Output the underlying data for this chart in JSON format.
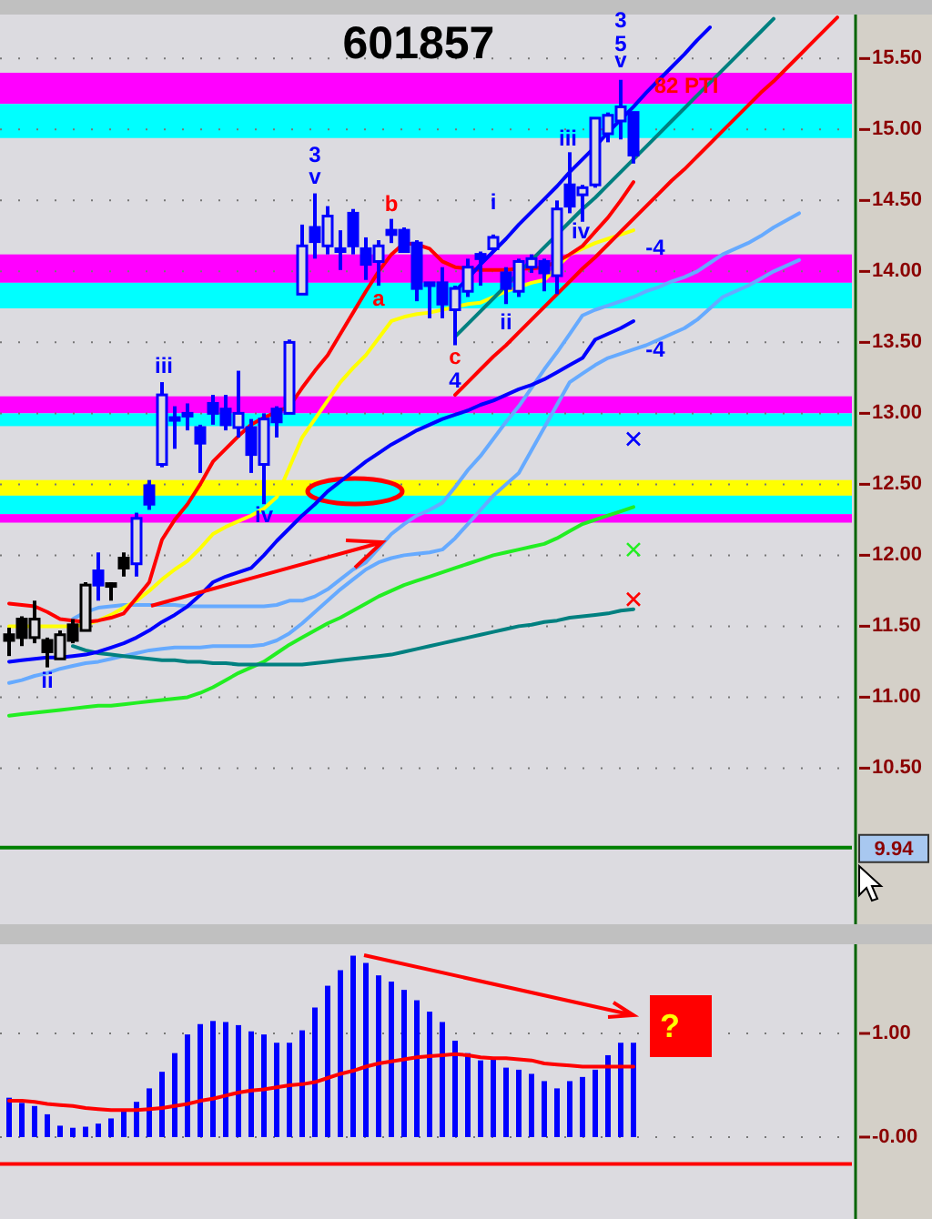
{
  "chart_data": [
    {
      "type": "candlestick",
      "title": "601857",
      "categories": [
        null,
        null,
        null,
        null,
        null,
        null,
        null,
        null,
        null,
        null,
        null,
        null,
        null,
        null,
        null,
        null,
        null,
        null,
        null,
        null,
        null,
        null,
        null,
        null,
        null,
        null,
        null,
        null,
        null,
        null,
        null,
        null,
        null,
        null,
        null,
        null,
        null,
        null,
        null,
        null,
        null,
        null,
        null,
        null,
        null,
        null,
        null,
        null,
        null,
        null,
        null,
        null,
        null,
        null,
        null,
        null,
        null,
        null,
        null,
        null,
        null,
        null,
        null,
        null,
        null,
        null,
        null
      ],
      "ohlc": [
        [
          11.44,
          11.49,
          11.29,
          11.4
        ],
        [
          11.55,
          11.57,
          11.36,
          11.42
        ],
        [
          11.42,
          11.68,
          11.38,
          11.55
        ],
        [
          11.4,
          11.42,
          11.21,
          11.32
        ],
        [
          11.27,
          11.47,
          11.27,
          11.44
        ],
        [
          11.51,
          11.55,
          11.38,
          11.4
        ],
        [
          11.47,
          11.81,
          11.47,
          11.79
        ],
        [
          11.89,
          12.02,
          11.68,
          11.79
        ],
        [
          11.8,
          11.81,
          11.68,
          11.79
        ],
        [
          11.98,
          12.02,
          11.85,
          11.91
        ],
        [
          11.94,
          12.3,
          11.85,
          12.26
        ],
        [
          12.49,
          12.53,
          12.32,
          12.36
        ],
        [
          12.64,
          13.22,
          12.62,
          13.13
        ],
        [
          12.97,
          13.05,
          12.75,
          12.96
        ],
        [
          13.0,
          13.07,
          12.88,
          12.99
        ],
        [
          12.9,
          12.92,
          12.58,
          12.79
        ],
        [
          13.07,
          13.13,
          12.92,
          13.0
        ],
        [
          13.03,
          13.13,
          12.88,
          12.92
        ],
        [
          12.9,
          13.3,
          12.83,
          13.0
        ],
        [
          12.9,
          12.96,
          12.58,
          12.71
        ],
        [
          12.64,
          13.0,
          12.36,
          12.96
        ],
        [
          13.03,
          13.05,
          12.83,
          12.94
        ],
        [
          13.0,
          13.52,
          13.0,
          13.5
        ],
        [
          13.84,
          14.33,
          13.84,
          14.18
        ],
        [
          14.31,
          14.55,
          14.09,
          14.21
        ],
        [
          14.18,
          14.46,
          14.12,
          14.39
        ],
        [
          14.16,
          14.29,
          14.01,
          14.14
        ],
        [
          14.41,
          14.44,
          14.12,
          14.18
        ],
        [
          14.16,
          14.24,
          13.94,
          14.05
        ],
        [
          14.07,
          14.22,
          13.9,
          14.18
        ],
        [
          14.29,
          14.37,
          14.2,
          14.26
        ],
        [
          14.29,
          14.31,
          14.14,
          14.14
        ],
        [
          14.2,
          14.22,
          13.79,
          13.88
        ],
        [
          13.92,
          13.92,
          13.67,
          13.9
        ],
        [
          13.92,
          14.03,
          13.67,
          13.77
        ],
        [
          13.73,
          13.9,
          13.48,
          13.88
        ],
        [
          13.86,
          14.09,
          13.82,
          14.03
        ],
        [
          14.12,
          14.14,
          13.9,
          14.09
        ],
        [
          14.16,
          14.26,
          14.14,
          14.24
        ],
        [
          13.99,
          14.03,
          13.77,
          13.88
        ],
        [
          13.86,
          14.09,
          13.82,
          14.07
        ],
        [
          14.03,
          14.12,
          13.99,
          14.09
        ],
        [
          14.07,
          14.09,
          13.86,
          13.99
        ],
        [
          13.97,
          14.5,
          13.84,
          14.44
        ],
        [
          14.61,
          14.84,
          14.41,
          14.46
        ],
        [
          14.54,
          14.61,
          14.35,
          14.59
        ],
        [
          14.61,
          15.08,
          14.59,
          15.08
        ],
        [
          14.97,
          15.12,
          14.91,
          15.1
        ],
        [
          15.06,
          15.35,
          14.93,
          15.16
        ],
        [
          15.12,
          15.12,
          14.76,
          14.82
        ],
        null,
        null,
        null,
        null,
        null,
        null,
        null,
        null,
        null,
        null,
        null,
        null,
        null,
        null,
        null,
        null,
        null
      ],
      "colors": [
        "#000000",
        "#000000",
        "#000000",
        "#000000",
        "#000000",
        "#000000",
        "#000000",
        "#0000ff",
        "#000000",
        "#000000",
        "#0000ff",
        "#0000ff",
        "#0000ff",
        "#0000ff",
        "#0000ff",
        "#0000ff",
        "#0000ff",
        "#0000ff",
        "#0000ff",
        "#0000ff",
        "#0000ff",
        "#0000ff",
        "#0000ff",
        "#0000ff",
        "#0000ff",
        "#0000ff",
        "#0000ff",
        "#0000ff",
        "#0000ff",
        "#0000ff",
        "#0000ff",
        "#0000ff",
        "#0000ff",
        "#0000ff",
        "#0000ff",
        "#0000ff",
        "#0000ff",
        "#0000ff",
        "#0000ff",
        "#0000ff",
        "#0000ff",
        "#0000ff",
        "#0000ff",
        "#0000ff",
        "#0000ff",
        "#0000ff",
        "#0000ff",
        "#0000ff",
        "#0000ff",
        "#0000ff",
        null,
        null,
        null,
        null,
        null,
        null,
        null,
        null,
        null,
        null,
        null,
        null,
        null,
        null,
        null,
        null,
        null
      ],
      "series": [
        {
          "type": "line",
          "color": "#66aaff",
          "values": [
            null,
            null,
            null,
            null,
            null,
            11.55,
            11.6,
            11.63,
            11.64,
            11.65,
            11.65,
            11.65,
            11.65,
            11.65,
            11.64,
            11.64,
            11.64,
            11.64,
            11.64,
            11.64,
            11.64,
            11.65,
            11.68,
            11.68,
            11.71,
            11.76,
            11.83,
            11.9,
            11.95,
            12.05,
            12.15,
            12.22,
            12.28,
            12.32,
            12.37,
            12.48,
            12.6,
            12.7,
            12.82,
            12.94,
            13.05,
            13.18,
            13.31,
            13.43,
            13.56,
            13.69,
            13.73,
            13.76,
            13.79,
            13.82,
            13.86,
            13.89,
            13.93,
            13.96,
            14.0,
            14.06,
            14.12,
            14.16,
            14.2,
            14.25,
            14.31,
            14.36,
            14.41,
            null,
            null,
            null,
            null
          ]
        },
        {
          "type": "line",
          "color": "#66aaff",
          "values": [
            11.1,
            11.12,
            11.15,
            11.17,
            11.2,
            11.22,
            11.24,
            11.25,
            11.27,
            11.29,
            11.31,
            11.33,
            11.34,
            11.35,
            11.35,
            11.35,
            11.36,
            11.36,
            11.36,
            11.36,
            11.37,
            11.4,
            11.45,
            11.52,
            11.6,
            11.68,
            11.76,
            11.83,
            11.9,
            11.95,
            11.98,
            12.0,
            12.01,
            12.02,
            12.04,
            12.12,
            12.22,
            12.32,
            12.42,
            12.5,
            12.58,
            12.74,
            12.9,
            13.06,
            13.22,
            13.28,
            13.34,
            13.39,
            13.42,
            13.45,
            13.48,
            13.52,
            13.56,
            13.6,
            13.66,
            13.74,
            13.82,
            13.86,
            13.9,
            13.95,
            14.0,
            14.04,
            14.08,
            null,
            null,
            null,
            null
          ]
        },
        {
          "type": "line",
          "color": "#22ee22",
          "values": [
            10.87,
            10.88,
            10.89,
            10.9,
            10.91,
            10.92,
            10.93,
            10.94,
            10.94,
            10.95,
            10.96,
            10.97,
            10.98,
            10.99,
            11.0,
            11.03,
            11.07,
            11.12,
            11.17,
            11.21,
            11.25,
            11.31,
            11.37,
            11.42,
            11.47,
            11.52,
            11.56,
            11.61,
            11.66,
            11.71,
            11.75,
            11.79,
            11.82,
            11.85,
            11.88,
            11.91,
            11.94,
            11.97,
            12.0,
            12.02,
            12.04,
            12.06,
            12.08,
            12.12,
            12.17,
            12.22,
            12.25,
            12.28,
            12.31,
            12.34,
            null,
            null,
            null,
            null,
            null,
            null,
            null,
            null,
            null,
            null,
            null,
            null,
            null,
            null,
            null,
            null,
            null
          ]
        },
        {
          "type": "line",
          "color": "#008080",
          "values": [
            null,
            null,
            null,
            null,
            null,
            11.36,
            11.33,
            11.31,
            11.3,
            11.29,
            11.28,
            11.27,
            11.26,
            11.26,
            11.25,
            11.25,
            11.24,
            11.24,
            11.23,
            11.23,
            11.23,
            11.23,
            11.23,
            11.23,
            11.24,
            11.25,
            11.26,
            11.27,
            11.28,
            11.29,
            11.3,
            11.32,
            11.34,
            11.36,
            11.38,
            11.4,
            11.42,
            11.44,
            11.46,
            11.48,
            11.5,
            11.51,
            11.53,
            11.54,
            11.56,
            11.57,
            11.58,
            11.59,
            11.61,
            11.62,
            null,
            null,
            null,
            null,
            null,
            null,
            null,
            null,
            null,
            null,
            null,
            null,
            null,
            null,
            null,
            null,
            null
          ]
        },
        {
          "type": "line",
          "color": "#ffff00",
          "values": [
            11.5,
            11.5,
            11.5,
            11.5,
            11.5,
            11.5,
            11.51,
            11.54,
            11.58,
            11.63,
            11.68,
            11.75,
            11.83,
            11.9,
            11.96,
            12.05,
            12.15,
            12.2,
            12.24,
            12.28,
            12.33,
            12.41,
            12.62,
            12.83,
            12.96,
            13.09,
            13.22,
            13.32,
            13.41,
            13.53,
            13.65,
            13.68,
            13.7,
            13.71,
            13.73,
            13.75,
            13.77,
            13.78,
            13.82,
            13.86,
            13.89,
            13.92,
            13.94,
            14.03,
            14.12,
            14.16,
            14.2,
            14.23,
            14.26,
            14.29,
            null,
            null,
            null,
            null,
            null,
            null,
            null,
            null,
            null,
            null,
            null,
            null,
            null,
            null,
            null,
            null,
            null
          ]
        },
        {
          "type": "line",
          "color": "#0000ff",
          "values": [
            11.25,
            11.26,
            11.27,
            11.28,
            11.28,
            11.29,
            11.3,
            11.32,
            11.35,
            11.38,
            11.42,
            11.47,
            11.53,
            11.58,
            11.64,
            11.72,
            11.81,
            11.85,
            11.88,
            11.91,
            12.0,
            12.1,
            12.19,
            12.28,
            12.36,
            12.45,
            12.52,
            12.59,
            12.66,
            12.72,
            12.78,
            12.83,
            12.88,
            12.92,
            12.96,
            12.99,
            13.02,
            13.06,
            13.09,
            13.13,
            13.17,
            13.2,
            13.24,
            13.29,
            13.34,
            13.39,
            13.52,
            13.56,
            13.6,
            13.65,
            null,
            null,
            null,
            null,
            null,
            null,
            null,
            null,
            null,
            null,
            null,
            null,
            null,
            null,
            null,
            null,
            null
          ]
        },
        {
          "type": "line",
          "color": "#ff0000",
          "values": [
            11.66,
            11.65,
            11.64,
            11.6,
            11.55,
            11.54,
            11.53,
            11.54,
            11.56,
            11.59,
            11.7,
            11.81,
            12.11,
            12.25,
            12.36,
            12.5,
            12.66,
            12.75,
            12.84,
            12.92,
            12.97,
            13.01,
            13.05,
            13.18,
            13.3,
            13.41,
            13.56,
            13.71,
            13.86,
            14.0,
            14.12,
            14.2,
            14.19,
            14.16,
            14.07,
            14.03,
            14.02,
            14.01,
            14.01,
            14.01,
            14.02,
            14.02,
            14.03,
            14.07,
            14.12,
            14.18,
            14.28,
            14.38,
            14.5,
            14.63,
            null,
            null,
            null,
            null,
            null,
            null,
            null,
            null,
            null,
            null,
            null,
            null,
            null,
            null,
            null,
            null,
            null
          ]
        },
        {
          "type": "line",
          "color": "#0000ff",
          "values": [
            null,
            null,
            null,
            null,
            null,
            null,
            null,
            null,
            null,
            null,
            null,
            null,
            null,
            null,
            null,
            null,
            null,
            null,
            null,
            null,
            null,
            null,
            null,
            null,
            null,
            null,
            null,
            null,
            null,
            null,
            null,
            null,
            null,
            null,
            null,
            13.86,
            13.95,
            14.05,
            14.14,
            14.23,
            14.33,
            14.42,
            14.51,
            14.6,
            14.7,
            14.79,
            14.88,
            14.98,
            15.07,
            15.16,
            15.26,
            15.35,
            15.44,
            15.53,
            15.63,
            15.72,
            null,
            null,
            null,
            null,
            null,
            null,
            null,
            null,
            null,
            null,
            null
          ]
        },
        {
          "type": "line",
          "color": "#008080",
          "values": [
            null,
            null,
            null,
            null,
            null,
            null,
            null,
            null,
            null,
            null,
            null,
            null,
            null,
            null,
            null,
            null,
            null,
            null,
            null,
            null,
            null,
            null,
            null,
            null,
            null,
            null,
            null,
            null,
            null,
            null,
            null,
            null,
            null,
            null,
            null,
            13.54,
            13.63,
            13.72,
            13.81,
            13.9,
            13.99,
            14.08,
            14.17,
            14.26,
            14.35,
            14.44,
            14.52,
            14.61,
            14.7,
            14.79,
            14.88,
            14.97,
            15.06,
            15.15,
            15.24,
            15.33,
            15.42,
            15.51,
            15.6,
            15.69,
            15.78,
            null,
            null,
            null,
            null,
            null,
            null
          ]
        },
        {
          "type": "line",
          "color": "#ff0000",
          "values": [
            null,
            null,
            null,
            null,
            null,
            null,
            null,
            null,
            null,
            null,
            null,
            null,
            null,
            null,
            null,
            null,
            null,
            null,
            null,
            null,
            null,
            null,
            null,
            null,
            null,
            null,
            null,
            null,
            null,
            null,
            null,
            null,
            null,
            null,
            null,
            13.13,
            13.22,
            13.31,
            13.4,
            13.48,
            13.57,
            13.66,
            13.75,
            13.84,
            13.93,
            14.02,
            14.1,
            14.19,
            14.28,
            14.37,
            14.46,
            14.55,
            14.64,
            14.72,
            14.81,
            14.9,
            14.99,
            15.08,
            15.17,
            15.26,
            15.34,
            15.43,
            15.52,
            15.61,
            15.7,
            15.79,
            null
          ]
        },
        {
          "type": "scatter",
          "marker": "cross",
          "color": "#0000ff",
          "values": [
            null,
            null,
            null,
            null,
            null,
            null,
            null,
            null,
            null,
            null,
            null,
            null,
            null,
            null,
            null,
            null,
            null,
            null,
            null,
            null,
            null,
            null,
            null,
            null,
            null,
            null,
            null,
            null,
            null,
            null,
            null,
            null,
            null,
            null,
            null,
            null,
            null,
            null,
            null,
            null,
            null,
            null,
            null,
            null,
            null,
            null,
            null,
            null,
            null,
            12.82,
            null,
            null,
            null,
            null,
            null,
            null,
            null,
            null,
            null,
            null,
            null,
            null,
            null,
            null,
            null,
            null,
            null
          ]
        },
        {
          "type": "scatter",
          "marker": "cross",
          "color": "#22ee22",
          "values": [
            null,
            null,
            null,
            null,
            null,
            null,
            null,
            null,
            null,
            null,
            null,
            null,
            null,
            null,
            null,
            null,
            null,
            null,
            null,
            null,
            null,
            null,
            null,
            null,
            null,
            null,
            null,
            null,
            null,
            null,
            null,
            null,
            null,
            null,
            null,
            null,
            null,
            null,
            null,
            null,
            null,
            null,
            null,
            null,
            null,
            null,
            null,
            null,
            null,
            12.04,
            null,
            null,
            null,
            null,
            null,
            null,
            null,
            null,
            null,
            null,
            null,
            null,
            null,
            null,
            null,
            null,
            null
          ]
        },
        {
          "type": "scatter",
          "marker": "cross",
          "color": "#ff0000",
          "values": [
            null,
            null,
            null,
            null,
            null,
            null,
            null,
            null,
            null,
            null,
            null,
            null,
            null,
            null,
            null,
            null,
            null,
            null,
            null,
            null,
            null,
            null,
            null,
            null,
            null,
            null,
            null,
            null,
            null,
            null,
            null,
            null,
            null,
            null,
            null,
            null,
            null,
            null,
            null,
            null,
            null,
            null,
            null,
            null,
            null,
            null,
            null,
            null,
            null,
            11.69,
            null,
            null,
            null,
            null,
            null,
            null,
            null,
            null,
            null,
            null,
            null,
            null,
            null,
            null,
            null,
            null,
            null
          ]
        }
      ],
      "annotations": [
        "ii",
        "iii",
        "iv",
        "3",
        "v",
        "a",
        "b",
        "c",
        "4",
        "i",
        "ii",
        "iii",
        "iv",
        "3",
        "5",
        "v",
        "-4",
        "-4",
        "82 PTI"
      ],
      "bands": [
        {
          "axis": "y",
          "from": 15.18,
          "to": 15.4,
          "color": "#ff00ff"
        },
        {
          "axis": "y",
          "from": 14.94,
          "to": 15.18,
          "color": "#00ffff"
        },
        {
          "axis": "y",
          "from": 13.92,
          "to": 14.12,
          "color": "#ff00ff"
        },
        {
          "axis": "y",
          "from": 13.74,
          "to": 13.92,
          "color": "#00ffff"
        },
        {
          "axis": "y",
          "from": 13.0,
          "to": 13.12,
          "color": "#ff00ff"
        },
        {
          "axis": "y",
          "from": 12.91,
          "to": 13.0,
          "color": "#00ffff"
        },
        {
          "axis": "y",
          "from": 12.42,
          "to": 12.53,
          "color": "#ffff00"
        },
        {
          "axis": "y",
          "from": 12.29,
          "to": 12.42,
          "color": "#00ffff"
        },
        {
          "axis": "y",
          "from": 12.23,
          "to": 12.29,
          "color": "#ff00ff"
        }
      ],
      "ref_lines": [
        {
          "axis": "y",
          "value": 9.94,
          "label": "9.94",
          "color": "#008000"
        }
      ],
      "ylim": [
        9.4,
        15.81
      ],
      "yticks": [
        {
          "value": 15.5,
          "label": "15.50"
        },
        {
          "value": 15,
          "label": "15.00"
        },
        {
          "value": 14.5,
          "label": "14.50"
        },
        {
          "value": 14,
          "label": "14.00"
        },
        {
          "value": 13.5,
          "label": "13.50"
        },
        {
          "value": 13,
          "label": "13.00"
        },
        {
          "value": 12.5,
          "label": "12.50"
        },
        {
          "value": 12,
          "label": "12.00"
        },
        {
          "value": 11.5,
          "label": "11.50"
        },
        {
          "value": 11,
          "label": "11.00"
        },
        {
          "value": 10.5,
          "label": "10.50"
        }
      ],
      "grid": "y",
      "tick_labels": "y"
    },
    {
      "type": "bar",
      "categories": [
        null,
        null,
        null,
        null,
        null,
        null,
        null,
        null,
        null,
        null,
        null,
        null,
        null,
        null,
        null,
        null,
        null,
        null,
        null,
        null,
        null,
        null,
        null,
        null,
        null,
        null,
        null,
        null,
        null,
        null,
        null,
        null,
        null,
        null,
        null,
        null,
        null,
        null,
        null,
        null,
        null,
        null,
        null,
        null,
        null,
        null,
        null,
        null,
        null,
        null,
        null,
        null,
        null,
        null,
        null,
        null,
        null,
        null,
        null,
        null,
        null,
        null,
        null,
        null,
        null,
        null,
        null
      ],
      "series": [
        {
          "type": "bar",
          "color": "#0000ff",
          "values": [
            0.38,
            0.33,
            0.3,
            0.22,
            0.11,
            0.09,
            0.1,
            0.13,
            0.18,
            0.26,
            0.34,
            0.47,
            0.63,
            0.81,
            0.99,
            1.09,
            1.12,
            1.11,
            1.08,
            1.02,
            0.99,
            0.91,
            0.91,
            1.03,
            1.25,
            1.46,
            1.61,
            1.75,
            1.68,
            1.56,
            1.5,
            1.42,
            1.32,
            1.21,
            1.11,
            0.93,
            0.81,
            0.74,
            0.75,
            0.67,
            0.65,
            0.61,
            0.54,
            0.47,
            0.54,
            0.58,
            0.65,
            0.79,
            0.91,
            0.91,
            null,
            null,
            null,
            null,
            null,
            null,
            null,
            null,
            null,
            null,
            null,
            null,
            null,
            null,
            null,
            null,
            null
          ]
        },
        {
          "type": "line",
          "color": "#ff0000",
          "values": [
            0.35,
            0.35,
            0.34,
            0.32,
            0.31,
            0.3,
            0.28,
            0.27,
            0.26,
            0.26,
            0.26,
            0.27,
            0.28,
            0.3,
            0.32,
            0.35,
            0.37,
            0.4,
            0.43,
            0.45,
            0.46,
            0.48,
            0.5,
            0.51,
            0.53,
            0.57,
            0.61,
            0.64,
            0.68,
            0.71,
            0.73,
            0.75,
            0.77,
            0.78,
            0.79,
            0.8,
            0.79,
            0.77,
            0.76,
            0.76,
            0.75,
            0.74,
            0.71,
            0.7,
            0.69,
            0.68,
            0.68,
            0.68,
            0.68,
            0.68,
            null,
            null,
            null,
            null,
            null,
            null,
            null,
            null,
            null,
            null,
            null,
            null,
            null,
            null,
            null,
            null,
            null
          ]
        }
      ],
      "ref_lines": [
        {
          "axis": "y",
          "value": -0.26,
          "color": "#ff0000"
        }
      ],
      "annotations": [
        "?"
      ],
      "ylim": [
        -0.79,
        1.86
      ],
      "yticks": [
        {
          "value": 1,
          "label": "1.00"
        },
        {
          "value": 0,
          "label": "-0.00"
        }
      ],
      "grid": "y",
      "tick_labels": "y"
    }
  ]
}
